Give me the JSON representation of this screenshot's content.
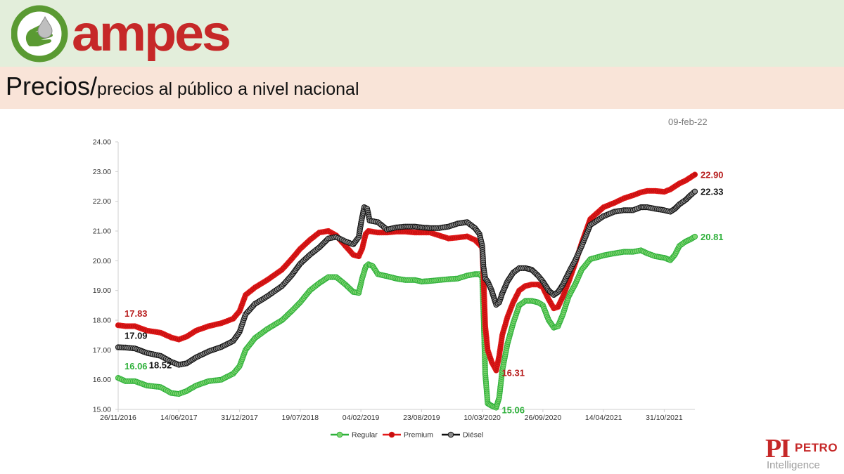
{
  "header": {
    "brand_name": "ampes",
    "brand_color": "#c62828",
    "icon": "hand-drop-icon"
  },
  "title": {
    "main": "Precios/",
    "sub": "precios al público a nivel nacional"
  },
  "date": "09-feb-22",
  "footer_logo": {
    "big": "PI",
    "petro": "PETRO",
    "intelligence": "Intelligence"
  },
  "chart_data": {
    "type": "line",
    "title": "",
    "xlabel": "",
    "ylabel": "",
    "ylim": [
      15,
      24
    ],
    "xlim": [
      "2016-11-26",
      "2022-02-09"
    ],
    "x_ticks": [
      "26/11/2016",
      "14/06/2017",
      "31/12/2017",
      "19/07/2018",
      "04/02/2019",
      "23/08/2019",
      "10/03/2020",
      "26/09/2020",
      "14/04/2021",
      "31/10/2021"
    ],
    "y_ticks": [
      "15.00",
      "16.00",
      "17.00",
      "18.00",
      "19.00",
      "20.00",
      "21.00",
      "22.00",
      "23.00",
      "24.00"
    ],
    "grid": false,
    "legend_position": "bottom",
    "series": [
      {
        "name": "Regular",
        "color": "#2eb03a",
        "marker_fill": "#7dd46f",
        "points": [
          [
            "2016-11-26",
            16.06
          ],
          [
            "2016-12-20",
            15.95
          ],
          [
            "2017-01-20",
            15.95
          ],
          [
            "2017-03-01",
            15.8
          ],
          [
            "2017-04-15",
            15.75
          ],
          [
            "2017-05-20",
            15.55
          ],
          [
            "2017-06-14",
            15.52
          ],
          [
            "2017-07-10",
            15.62
          ],
          [
            "2017-08-10",
            15.8
          ],
          [
            "2017-09-20",
            15.95
          ],
          [
            "2017-11-01",
            16.0
          ],
          [
            "2017-12-10",
            16.2
          ],
          [
            "2017-12-31",
            16.45
          ],
          [
            "2018-01-20",
            17.0
          ],
          [
            "2018-02-20",
            17.4
          ],
          [
            "2018-04-01",
            17.7
          ],
          [
            "2018-05-20",
            18.0
          ],
          [
            "2018-06-20",
            18.3
          ],
          [
            "2018-07-19",
            18.6
          ],
          [
            "2018-08-20",
            19.0
          ],
          [
            "2018-09-20",
            19.25
          ],
          [
            "2018-10-20",
            19.45
          ],
          [
            "2018-11-15",
            19.45
          ],
          [
            "2018-12-15",
            19.2
          ],
          [
            "2019-01-10",
            18.95
          ],
          [
            "2019-01-28",
            18.92
          ],
          [
            "2019-02-08",
            19.4
          ],
          [
            "2019-02-20",
            19.8
          ],
          [
            "2019-03-01",
            19.88
          ],
          [
            "2019-03-15",
            19.82
          ],
          [
            "2019-04-01",
            19.55
          ],
          [
            "2019-05-01",
            19.48
          ],
          [
            "2019-06-01",
            19.4
          ],
          [
            "2019-07-01",
            19.35
          ],
          [
            "2019-08-01",
            19.35
          ],
          [
            "2019-08-23",
            19.3
          ],
          [
            "2019-09-20",
            19.32
          ],
          [
            "2019-10-20",
            19.35
          ],
          [
            "2019-11-20",
            19.38
          ],
          [
            "2019-12-20",
            19.4
          ],
          [
            "2020-01-20",
            19.5
          ],
          [
            "2020-02-15",
            19.55
          ],
          [
            "2020-03-01",
            19.55
          ],
          [
            "2020-03-10",
            19.45
          ],
          [
            "2020-03-14",
            18.3
          ],
          [
            "2020-03-20",
            16.2
          ],
          [
            "2020-03-28",
            15.2
          ],
          [
            "2020-04-10",
            15.12
          ],
          [
            "2020-04-25",
            15.06
          ],
          [
            "2020-05-05",
            15.4
          ],
          [
            "2020-05-15",
            16.3
          ],
          [
            "2020-06-01",
            17.2
          ],
          [
            "2020-06-20",
            17.9
          ],
          [
            "2020-07-10",
            18.5
          ],
          [
            "2020-07-30",
            18.65
          ],
          [
            "2020-08-20",
            18.65
          ],
          [
            "2020-09-10",
            18.6
          ],
          [
            "2020-09-26",
            18.5
          ],
          [
            "2020-10-15",
            18.0
          ],
          [
            "2020-11-01",
            17.75
          ],
          [
            "2020-11-15",
            17.8
          ],
          [
            "2020-12-01",
            18.2
          ],
          [
            "2020-12-20",
            18.8
          ],
          [
            "2021-01-10",
            19.2
          ],
          [
            "2021-02-01",
            19.7
          ],
          [
            "2021-03-01",
            20.05
          ],
          [
            "2021-04-14",
            20.18
          ],
          [
            "2021-05-20",
            20.25
          ],
          [
            "2021-06-20",
            20.3
          ],
          [
            "2021-07-20",
            20.3
          ],
          [
            "2021-08-15",
            20.35
          ],
          [
            "2021-09-05",
            20.25
          ],
          [
            "2021-10-01",
            20.15
          ],
          [
            "2021-10-31",
            20.1
          ],
          [
            "2021-11-20",
            20.02
          ],
          [
            "2021-12-05",
            20.2
          ],
          [
            "2021-12-20",
            20.5
          ],
          [
            "2022-01-10",
            20.65
          ],
          [
            "2022-01-25",
            20.72
          ],
          [
            "2022-02-09",
            20.81
          ]
        ]
      },
      {
        "name": "Premium",
        "color": "#e31b1b",
        "marker_fill": "#c40f0f",
        "points": [
          [
            "2016-11-26",
            17.83
          ],
          [
            "2016-12-20",
            17.8
          ],
          [
            "2017-01-20",
            17.8
          ],
          [
            "2017-03-01",
            17.65
          ],
          [
            "2017-04-15",
            17.58
          ],
          [
            "2017-05-20",
            17.42
          ],
          [
            "2017-06-14",
            17.35
          ],
          [
            "2017-07-10",
            17.45
          ],
          [
            "2017-08-10",
            17.65
          ],
          [
            "2017-09-20",
            17.8
          ],
          [
            "2017-11-01",
            17.9
          ],
          [
            "2017-12-10",
            18.05
          ],
          [
            "2017-12-31",
            18.3
          ],
          [
            "2018-01-20",
            18.85
          ],
          [
            "2018-02-20",
            19.1
          ],
          [
            "2018-04-01",
            19.35
          ],
          [
            "2018-05-20",
            19.7
          ],
          [
            "2018-06-20",
            20.05
          ],
          [
            "2018-07-19",
            20.4
          ],
          [
            "2018-08-20",
            20.7
          ],
          [
            "2018-09-20",
            20.95
          ],
          [
            "2018-10-20",
            21.0
          ],
          [
            "2018-11-15",
            20.85
          ],
          [
            "2018-12-15",
            20.5
          ],
          [
            "2019-01-10",
            20.2
          ],
          [
            "2019-01-28",
            20.15
          ],
          [
            "2019-02-08",
            20.4
          ],
          [
            "2019-02-20",
            20.9
          ],
          [
            "2019-03-01",
            21.0
          ],
          [
            "2019-04-01",
            20.95
          ],
          [
            "2019-05-01",
            20.95
          ],
          [
            "2019-06-01",
            20.98
          ],
          [
            "2019-07-01",
            20.98
          ],
          [
            "2019-08-01",
            20.95
          ],
          [
            "2019-08-23",
            20.95
          ],
          [
            "2019-09-20",
            20.95
          ],
          [
            "2019-10-20",
            20.85
          ],
          [
            "2019-11-20",
            20.75
          ],
          [
            "2019-12-20",
            20.78
          ],
          [
            "2020-01-20",
            20.82
          ],
          [
            "2020-02-15",
            20.7
          ],
          [
            "2020-03-01",
            20.55
          ],
          [
            "2020-03-10",
            20.45
          ],
          [
            "2020-03-14",
            19.5
          ],
          [
            "2020-03-20",
            17.8
          ],
          [
            "2020-03-28",
            17.0
          ],
          [
            "2020-04-10",
            16.6
          ],
          [
            "2020-04-25",
            16.31
          ],
          [
            "2020-05-05",
            16.8
          ],
          [
            "2020-05-15",
            17.5
          ],
          [
            "2020-06-01",
            18.1
          ],
          [
            "2020-06-20",
            18.6
          ],
          [
            "2020-07-10",
            19.0
          ],
          [
            "2020-07-30",
            19.15
          ],
          [
            "2020-08-20",
            19.2
          ],
          [
            "2020-09-10",
            19.2
          ],
          [
            "2020-09-26",
            19.1
          ],
          [
            "2020-10-15",
            18.7
          ],
          [
            "2020-11-01",
            18.4
          ],
          [
            "2020-11-15",
            18.45
          ],
          [
            "2020-12-01",
            18.8
          ],
          [
            "2020-12-20",
            19.3
          ],
          [
            "2021-01-10",
            19.9
          ],
          [
            "2021-02-01",
            20.6
          ],
          [
            "2021-03-01",
            21.4
          ],
          [
            "2021-04-14",
            21.8
          ],
          [
            "2021-05-20",
            21.95
          ],
          [
            "2021-06-20",
            22.1
          ],
          [
            "2021-07-20",
            22.2
          ],
          [
            "2021-08-15",
            22.3
          ],
          [
            "2021-09-05",
            22.35
          ],
          [
            "2021-10-01",
            22.35
          ],
          [
            "2021-10-31",
            22.32
          ],
          [
            "2021-11-20",
            22.4
          ],
          [
            "2021-12-05",
            22.5
          ],
          [
            "2021-12-20",
            22.6
          ],
          [
            "2022-01-10",
            22.7
          ],
          [
            "2022-01-25",
            22.8
          ],
          [
            "2022-02-09",
            22.9
          ]
        ]
      },
      {
        "name": "Diésel",
        "color": "#111111",
        "marker_fill": "#8a8a8a",
        "points": [
          [
            "2016-11-26",
            17.09
          ],
          [
            "2016-12-20",
            17.08
          ],
          [
            "2017-01-20",
            17.05
          ],
          [
            "2017-03-01",
            16.9
          ],
          [
            "2017-04-15",
            16.8
          ],
          [
            "2017-05-20",
            16.6
          ],
          [
            "2017-06-14",
            16.5
          ],
          [
            "2017-07-10",
            16.55
          ],
          [
            "2017-08-10",
            16.75
          ],
          [
            "2017-09-20",
            16.95
          ],
          [
            "2017-11-01",
            17.1
          ],
          [
            "2017-12-10",
            17.3
          ],
          [
            "2017-12-31",
            17.6
          ],
          [
            "2018-01-20",
            18.2
          ],
          [
            "2018-02-20",
            18.55
          ],
          [
            "2018-04-01",
            18.8
          ],
          [
            "2018-05-20",
            19.15
          ],
          [
            "2018-06-20",
            19.5
          ],
          [
            "2018-07-19",
            19.9
          ],
          [
            "2018-08-20",
            20.2
          ],
          [
            "2018-09-20",
            20.45
          ],
          [
            "2018-10-20",
            20.75
          ],
          [
            "2018-11-15",
            20.8
          ],
          [
            "2018-12-15",
            20.65
          ],
          [
            "2019-01-10",
            20.55
          ],
          [
            "2019-01-28",
            20.8
          ],
          [
            "2019-02-05",
            21.3
          ],
          [
            "2019-02-15",
            21.8
          ],
          [
            "2019-02-25",
            21.75
          ],
          [
            "2019-03-05",
            21.35
          ],
          [
            "2019-04-01",
            21.3
          ],
          [
            "2019-05-01",
            21.05
          ],
          [
            "2019-06-01",
            21.12
          ],
          [
            "2019-07-01",
            21.15
          ],
          [
            "2019-08-01",
            21.15
          ],
          [
            "2019-08-23",
            21.12
          ],
          [
            "2019-09-20",
            21.1
          ],
          [
            "2019-10-20",
            21.1
          ],
          [
            "2019-11-20",
            21.15
          ],
          [
            "2019-12-20",
            21.25
          ],
          [
            "2020-01-20",
            21.3
          ],
          [
            "2020-02-15",
            21.1
          ],
          [
            "2020-03-01",
            20.9
          ],
          [
            "2020-03-10",
            20.5
          ],
          [
            "2020-03-14",
            19.8
          ],
          [
            "2020-03-20",
            19.4
          ],
          [
            "2020-03-28",
            19.3
          ],
          [
            "2020-04-10",
            19.0
          ],
          [
            "2020-04-25",
            18.52
          ],
          [
            "2020-05-05",
            18.6
          ],
          [
            "2020-05-15",
            18.9
          ],
          [
            "2020-06-01",
            19.3
          ],
          [
            "2020-06-20",
            19.6
          ],
          [
            "2020-07-10",
            19.75
          ],
          [
            "2020-07-30",
            19.75
          ],
          [
            "2020-08-20",
            19.7
          ],
          [
            "2020-09-10",
            19.5
          ],
          [
            "2020-09-26",
            19.3
          ],
          [
            "2020-10-15",
            19.0
          ],
          [
            "2020-11-01",
            18.85
          ],
          [
            "2020-11-15",
            18.95
          ],
          [
            "2020-12-01",
            19.2
          ],
          [
            "2020-12-20",
            19.6
          ],
          [
            "2021-01-10",
            20.0
          ],
          [
            "2021-02-01",
            20.5
          ],
          [
            "2021-03-01",
            21.2
          ],
          [
            "2021-04-14",
            21.5
          ],
          [
            "2021-05-20",
            21.65
          ],
          [
            "2021-06-20",
            21.7
          ],
          [
            "2021-07-20",
            21.7
          ],
          [
            "2021-08-15",
            21.8
          ],
          [
            "2021-09-05",
            21.8
          ],
          [
            "2021-10-01",
            21.75
          ],
          [
            "2021-10-31",
            21.7
          ],
          [
            "2021-11-20",
            21.65
          ],
          [
            "2021-12-05",
            21.75
          ],
          [
            "2021-12-20",
            21.9
          ],
          [
            "2022-01-10",
            22.05
          ],
          [
            "2022-01-25",
            22.2
          ],
          [
            "2022-02-09",
            22.33
          ]
        ]
      }
    ],
    "annotations": [
      {
        "text": "17.83",
        "series": "Premium",
        "color": "#b71c1c",
        "anchor": "start"
      },
      {
        "text": "17.09",
        "series": "Diésel",
        "color": "#111111",
        "anchor": "start"
      },
      {
        "text": "16.06",
        "series": "Regular",
        "color": "#2eb03a",
        "anchor": "start"
      },
      {
        "text": "22.90",
        "series": "Premium",
        "color": "#b71c1c",
        "anchor": "end"
      },
      {
        "text": "22.33",
        "series": "Diésel",
        "color": "#111111",
        "anchor": "end"
      },
      {
        "text": "20.81",
        "series": "Regular",
        "color": "#2eb03a",
        "anchor": "end"
      },
      {
        "text": "18.52",
        "series": "Diésel",
        "color": "#111111",
        "anchor": "min"
      },
      {
        "text": "16.31",
        "series": "Premium",
        "color": "#b71c1c",
        "anchor": "min"
      },
      {
        "text": "15.06",
        "series": "Regular",
        "color": "#2eb03a",
        "anchor": "min"
      }
    ]
  }
}
